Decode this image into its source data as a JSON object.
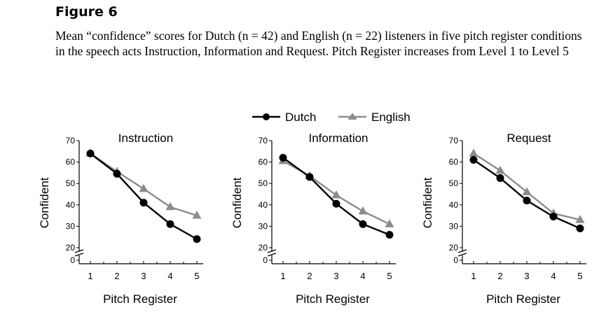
{
  "figure_label": "Figure 6",
  "caption": "Mean “confidence” scores for Dutch (n = 42) and English (n = 22) listeners in five pitch register conditions in the speech acts Instruction, Information and Request. Pitch Register increases from Level 1 to Level 5",
  "legend": {
    "placement": "top-center",
    "entries": [
      "Dutch",
      "English"
    ]
  },
  "colors": {
    "dutch": "#000000",
    "english": "#8c8c8c"
  },
  "chart_data": [
    {
      "type": "line",
      "title": "Instruction",
      "xlabel": "Pitch Register",
      "ylabel": "Confident",
      "categories": [
        "1",
        "2",
        "3",
        "4",
        "5"
      ],
      "x": [
        1,
        2,
        3,
        4,
        5
      ],
      "yticks": [
        "0",
        "20",
        "30",
        "40",
        "50",
        "60",
        "70"
      ],
      "ylim": [
        20,
        70
      ],
      "axis_break": true,
      "grid": false,
      "series": [
        {
          "name": "Dutch",
          "values": [
            64,
            54.5,
            41,
            31,
            24
          ]
        },
        {
          "name": "English",
          "values": [
            64,
            55.5,
            47.5,
            39,
            35
          ]
        }
      ]
    },
    {
      "type": "line",
      "title": "Information",
      "xlabel": "Pitch Register",
      "ylabel": "Confident",
      "categories": [
        "1",
        "2",
        "3",
        "4",
        "5"
      ],
      "x": [
        1,
        2,
        3,
        4,
        5
      ],
      "yticks": [
        "0",
        "20",
        "30",
        "40",
        "50",
        "60",
        "70"
      ],
      "ylim": [
        20,
        70
      ],
      "axis_break": true,
      "grid": false,
      "series": [
        {
          "name": "Dutch",
          "values": [
            62,
            53,
            40.5,
            31,
            26
          ]
        },
        {
          "name": "English",
          "values": [
            60.5,
            53.5,
            44.5,
            37,
            31
          ]
        }
      ]
    },
    {
      "type": "line",
      "title": "Request",
      "xlabel": "Pitch Register",
      "ylabel": "Confident",
      "categories": [
        "1",
        "2",
        "3",
        "4",
        "5"
      ],
      "x": [
        1,
        2,
        3,
        4,
        5
      ],
      "yticks": [
        "0",
        "20",
        "30",
        "40",
        "50",
        "60",
        "70"
      ],
      "ylim": [
        20,
        70
      ],
      "axis_break": true,
      "grid": false,
      "series": [
        {
          "name": "Dutch",
          "values": [
            61,
            52.5,
            42,
            34.5,
            29
          ]
        },
        {
          "name": "English",
          "values": [
            64,
            56,
            46,
            36,
            33
          ]
        }
      ]
    }
  ]
}
